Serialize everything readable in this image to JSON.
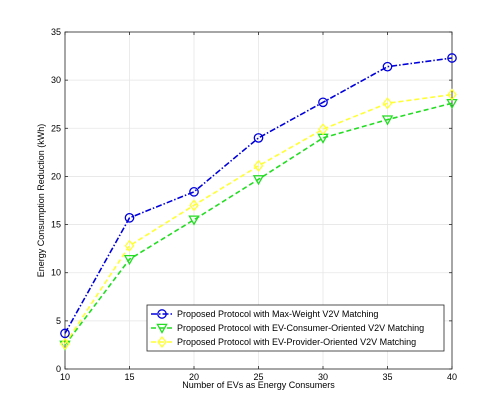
{
  "chart_data": {
    "type": "line",
    "title": "",
    "xlabel": "Number of EVs as Energy Consumers",
    "ylabel": "Energy Consumption Reduction (kWh)",
    "x": [
      10,
      15,
      20,
      25,
      30,
      35,
      40
    ],
    "xlim": [
      10,
      40
    ],
    "ylim": [
      0,
      35
    ],
    "xticks": [
      "10",
      "15",
      "20",
      "25",
      "30",
      "35",
      "40"
    ],
    "yticks": [
      "0",
      "5",
      "10",
      "15",
      "20",
      "25",
      "30",
      "35"
    ],
    "grid": true,
    "legend_position": "bottom-right",
    "series": [
      {
        "name": "Proposed Protocol with Max-Weight V2V Matching",
        "values": [
          3.7,
          15.7,
          18.4,
          24.0,
          27.7,
          31.4,
          32.3
        ],
        "color": "#0000dd",
        "marker": "circle",
        "line_style": "dash-dot"
      },
      {
        "name": "Proposed Protocol with EV-Consumer-Oriented V2V Matching",
        "values": [
          2.5,
          11.4,
          15.5,
          19.7,
          24.0,
          25.9,
          27.6
        ],
        "color": "#22dd22",
        "marker": "triangle-down",
        "line_style": "dashed"
      },
      {
        "name": "Proposed Protocol with EV-Provider-Oriented V2V Matching",
        "values": [
          2.6,
          12.8,
          17.0,
          21.1,
          24.9,
          27.6,
          28.5
        ],
        "color": "#ffff33",
        "marker": "diamond",
        "line_style": "dashed"
      }
    ]
  }
}
